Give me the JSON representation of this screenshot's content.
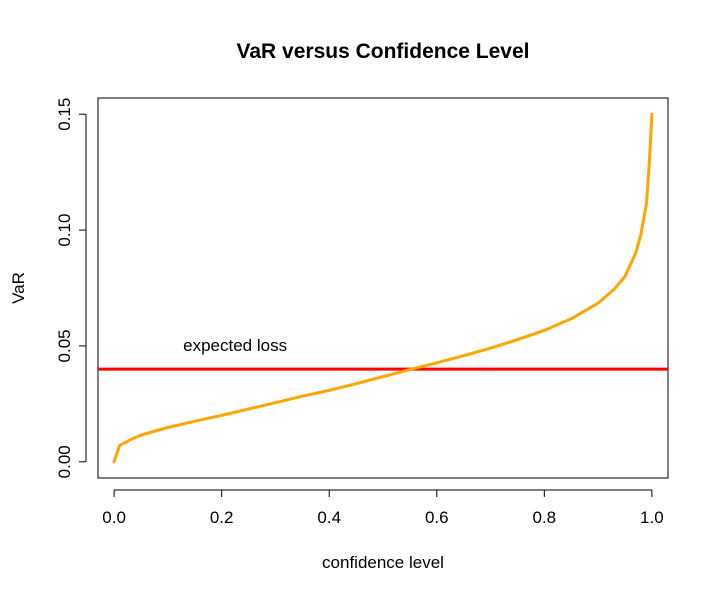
{
  "chart_data": {
    "type": "line",
    "title": "VaR versus Confidence Level",
    "xlabel": "confidence level",
    "ylabel": "VaR",
    "xlim": [
      -0.03,
      1.03
    ],
    "ylim": [
      -0.007,
      0.157
    ],
    "x_ticks": [
      0.0,
      0.2,
      0.4,
      0.6,
      0.8,
      1.0
    ],
    "x_tick_labels": [
      "0.0",
      "0.2",
      "0.4",
      "0.6",
      "0.8",
      "1.0"
    ],
    "y_ticks": [
      0.0,
      0.05,
      0.1,
      0.15
    ],
    "y_tick_labels": [
      "0.00",
      "0.05",
      "0.10",
      "0.15"
    ],
    "grid": false,
    "series": [
      {
        "color": "#FFA500",
        "x": [
          0.0,
          0.01,
          0.03,
          0.05,
          0.08,
          0.1,
          0.15,
          0.2,
          0.25,
          0.3,
          0.35,
          0.4,
          0.45,
          0.5,
          0.55,
          0.6,
          0.65,
          0.7,
          0.75,
          0.8,
          0.85,
          0.9,
          0.93,
          0.95,
          0.97,
          0.98,
          0.99,
          0.995,
          1.0
        ],
        "y": [
          0.0,
          0.007,
          0.0095,
          0.0115,
          0.0135,
          0.0148,
          0.0175,
          0.02,
          0.0228,
          0.0255,
          0.0283,
          0.0308,
          0.0337,
          0.0367,
          0.0398,
          0.0427,
          0.0458,
          0.049,
          0.0527,
          0.0567,
          0.0617,
          0.0685,
          0.0745,
          0.08,
          0.09,
          0.0985,
          0.1115,
          0.128,
          0.15
        ]
      }
    ],
    "hlines": [
      {
        "y": 0.04,
        "color": "#FF0000"
      }
    ],
    "annotations": [
      {
        "text": "expected loss",
        "x": 0.225,
        "y": 0.0478
      }
    ]
  }
}
